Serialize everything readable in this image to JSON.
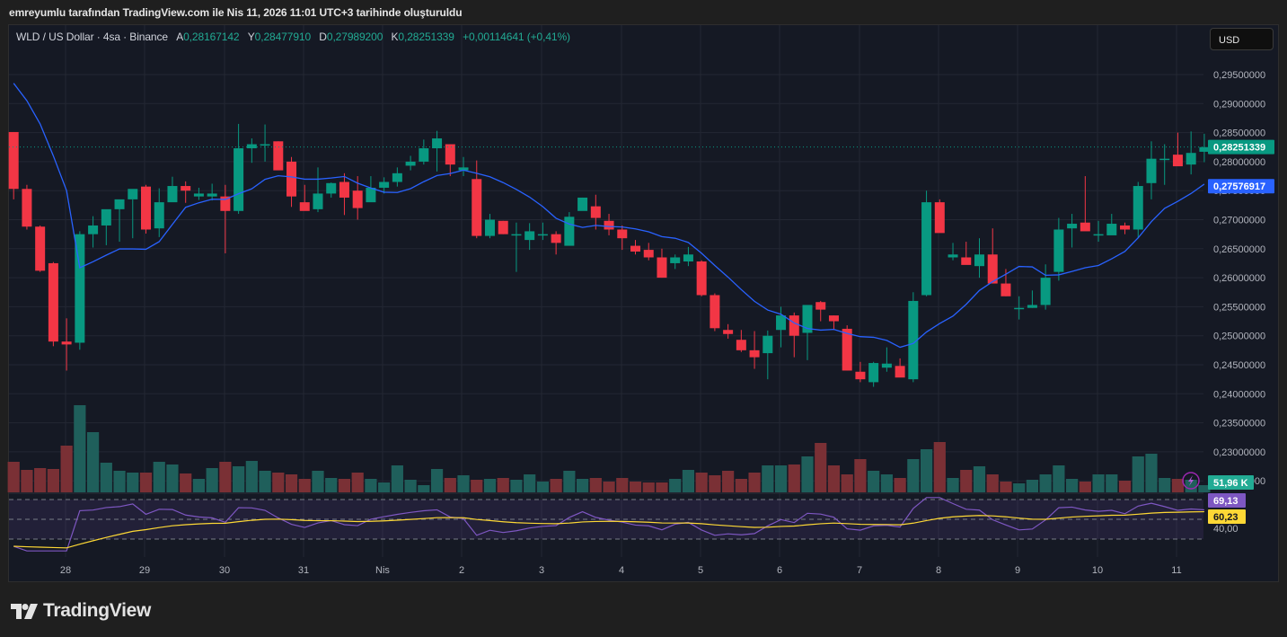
{
  "caption": "emreyumlu tarafından TradingView.com ile Nis 11, 2026 11:01 UTC+3 tarihinde oluşturuldu",
  "legend": {
    "symbol": "WLD / US Dollar · 4sa · Binance",
    "open_label": "A",
    "open": "0,28167142",
    "high_label": "Y",
    "high": "0,28477910",
    "low_label": "D",
    "low": "0,27989200",
    "close_label": "K",
    "close": "0,28251339",
    "change": "+0,00114641 (+0,41%)"
  },
  "currency_button": "USD",
  "price_badges": {
    "last_price": "0,28251339",
    "ma_value": "0,27576917",
    "volume": "51,96 K",
    "rsi": "69,13",
    "rsi_ma": "60,23",
    "rsi_level": "40,00"
  },
  "colors": {
    "up": "#089981",
    "down": "#f23645",
    "vol_up": "#1f5f5b",
    "vol_down": "#7a3035",
    "ma": "#2962ff",
    "rsi": "#7e57c2",
    "rsi_ma": "#fdd835",
    "bg": "#151924",
    "grid": "#232733",
    "axis_text": "#b2b5be"
  },
  "brand": "TradingView",
  "chart_data": {
    "type": "candlestick",
    "title": "WLD / US Dollar · 4sa · Binance",
    "yaxis": {
      "min": 0.225,
      "max": 0.295,
      "ticks": [
        "0,29500000",
        "0,29000000",
        "0,28500000",
        "0,28000000",
        "0,27500000",
        "0,27000000",
        "0,26500000",
        "0,26000000",
        "0,25500000",
        "0,25000000",
        "0,24500000",
        "0,24000000",
        "0,23500000",
        "0,23000000",
        "0,22500000"
      ]
    },
    "xaxis_ticks": [
      "28",
      "29",
      "30",
      "31",
      "Nis",
      "2",
      "3",
      "4",
      "5",
      "6",
      "7",
      "8",
      "9",
      "10",
      "11"
    ],
    "candles": [
      [
        0.2851,
        0.2851,
        0.2735,
        0.2753
      ],
      [
        0.2753,
        0.276,
        0.2683,
        0.2688
      ],
      [
        0.2688,
        0.269,
        0.261,
        0.2612
      ],
      [
        0.2625,
        0.2627,
        0.2482,
        0.249
      ],
      [
        0.249,
        0.253,
        0.244,
        0.2485
      ],
      [
        0.2488,
        0.268,
        0.2476,
        0.2675
      ],
      [
        0.2675,
        0.2706,
        0.2652,
        0.269
      ],
      [
        0.269,
        0.2716,
        0.2656,
        0.2718
      ],
      [
        0.2718,
        0.2722,
        0.2662,
        0.2735
      ],
      [
        0.2735,
        0.2735,
        0.2668,
        0.2753
      ],
      [
        0.2757,
        0.276,
        0.2676,
        0.2683
      ],
      [
        0.2685,
        0.2754,
        0.267,
        0.273
      ],
      [
        0.273,
        0.2774,
        0.2732,
        0.2758
      ],
      [
        0.2758,
        0.2766,
        0.2729,
        0.275
      ],
      [
        0.274,
        0.2755,
        0.2734,
        0.2745
      ],
      [
        0.274,
        0.2762,
        0.2733,
        0.2745
      ],
      [
        0.274,
        0.276,
        0.2642,
        0.2715
      ],
      [
        0.2715,
        0.2865,
        0.271,
        0.2823
      ],
      [
        0.2823,
        0.284,
        0.2798,
        0.283
      ],
      [
        0.283,
        0.2864,
        0.28,
        0.283
      ],
      [
        0.2835,
        0.2835,
        0.279,
        0.2785
      ],
      [
        0.28,
        0.2808,
        0.2722,
        0.274
      ],
      [
        0.273,
        0.276,
        0.2718,
        0.2715
      ],
      [
        0.2718,
        0.279,
        0.2713,
        0.2745
      ],
      [
        0.2745,
        0.2764,
        0.2738,
        0.2763
      ],
      [
        0.2765,
        0.278,
        0.2708,
        0.2738
      ],
      [
        0.275,
        0.2775,
        0.27,
        0.272
      ],
      [
        0.273,
        0.2775,
        0.2732,
        0.2755
      ],
      [
        0.2755,
        0.2773,
        0.2745,
        0.2765
      ],
      [
        0.2765,
        0.279,
        0.2757,
        0.278
      ],
      [
        0.2793,
        0.281,
        0.2785,
        0.28
      ],
      [
        0.28,
        0.2838,
        0.2795,
        0.2823
      ],
      [
        0.2823,
        0.2853,
        0.2783,
        0.284
      ],
      [
        0.283,
        0.283,
        0.2775,
        0.2795
      ],
      [
        0.2785,
        0.2808,
        0.2775,
        0.279
      ],
      [
        0.277,
        0.2802,
        0.2668,
        0.2672
      ],
      [
        0.2672,
        0.271,
        0.2668,
        0.27
      ],
      [
        0.2698,
        0.2698,
        0.2675,
        0.2675
      ],
      [
        0.2675,
        0.2695,
        0.261,
        0.2675
      ],
      [
        0.2665,
        0.2694,
        0.2648,
        0.268
      ],
      [
        0.2675,
        0.2695,
        0.2665,
        0.2675
      ],
      [
        0.2675,
        0.268,
        0.264,
        0.266
      ],
      [
        0.2655,
        0.2713,
        0.2657,
        0.2705
      ],
      [
        0.2715,
        0.2738,
        0.2718,
        0.2738
      ],
      [
        0.2723,
        0.2743,
        0.2683,
        0.2703
      ],
      [
        0.2698,
        0.271,
        0.2673,
        0.2683
      ],
      [
        0.2683,
        0.269,
        0.2648,
        0.2668
      ],
      [
        0.2655,
        0.2665,
        0.264,
        0.2645
      ],
      [
        0.2648,
        0.266,
        0.263,
        0.2635
      ],
      [
        0.2635,
        0.265,
        0.26,
        0.26
      ],
      [
        0.2625,
        0.264,
        0.2615,
        0.2635
      ],
      [
        0.2628,
        0.2653,
        0.262,
        0.264
      ],
      [
        0.2628,
        0.263,
        0.2568,
        0.257
      ],
      [
        0.257,
        0.2573,
        0.2508,
        0.2513
      ],
      [
        0.251,
        0.252,
        0.2495,
        0.2503
      ],
      [
        0.2493,
        0.251,
        0.2472,
        0.2475
      ],
      [
        0.2475,
        0.2508,
        0.2443,
        0.2463
      ],
      [
        0.247,
        0.2509,
        0.2425,
        0.25
      ],
      [
        0.251,
        0.255,
        0.248,
        0.2535
      ],
      [
        0.2535,
        0.254,
        0.2463,
        0.25
      ],
      [
        0.2505,
        0.255,
        0.2458,
        0.2553
      ],
      [
        0.2558,
        0.256,
        0.2525,
        0.2545
      ],
      [
        0.2535,
        0.2535,
        0.251,
        0.2525
      ],
      [
        0.2512,
        0.2518,
        0.244,
        0.244
      ],
      [
        0.2438,
        0.2455,
        0.242,
        0.2425
      ],
      [
        0.242,
        0.2455,
        0.2412,
        0.2453
      ],
      [
        0.2445,
        0.248,
        0.2438,
        0.2452
      ],
      [
        0.2448,
        0.2461,
        0.2429,
        0.2428
      ],
      [
        0.2425,
        0.2575,
        0.242,
        0.256
      ],
      [
        0.257,
        0.275,
        0.2568,
        0.273
      ],
      [
        0.273,
        0.2735,
        0.269,
        0.2677
      ],
      [
        0.2635,
        0.266,
        0.263,
        0.264
      ],
      [
        0.2635,
        0.2662,
        0.2632,
        0.2622
      ],
      [
        0.262,
        0.2668,
        0.26,
        0.264
      ],
      [
        0.264,
        0.2685,
        0.2598,
        0.259
      ],
      [
        0.259,
        0.2615,
        0.2568,
        0.2568
      ],
      [
        0.2548,
        0.2568,
        0.2528,
        0.2548
      ],
      [
        0.2548,
        0.2578,
        0.2548,
        0.2553
      ],
      [
        0.2553,
        0.2623,
        0.2545,
        0.26
      ],
      [
        0.261,
        0.2703,
        0.2595,
        0.2683
      ],
      [
        0.2685,
        0.271,
        0.2652,
        0.2693
      ],
      [
        0.2695,
        0.2775,
        0.2688,
        0.268
      ],
      [
        0.2673,
        0.2698,
        0.2662,
        0.2675
      ],
      [
        0.2673,
        0.271,
        0.2678,
        0.2693
      ],
      [
        0.269,
        0.2695,
        0.2675,
        0.2683
      ],
      [
        0.2683,
        0.2765,
        0.2668,
        0.2758
      ],
      [
        0.2763,
        0.2835,
        0.2735,
        0.2805
      ],
      [
        0.2805,
        0.283,
        0.276,
        0.2805
      ],
      [
        0.2812,
        0.285,
        0.2808,
        0.2792
      ],
      [
        0.2795,
        0.2852,
        0.2778,
        0.2815
      ],
      [
        0.2817,
        0.2848,
        0.2799,
        0.2825
      ]
    ],
    "ma_label": "0,27576917",
    "volume_label": "51,96 K",
    "rsi": {
      "value": "69,13",
      "ma": "60,23",
      "levels": [
        "70",
        "50",
        "30"
      ],
      "shown_level": "40,00"
    }
  }
}
